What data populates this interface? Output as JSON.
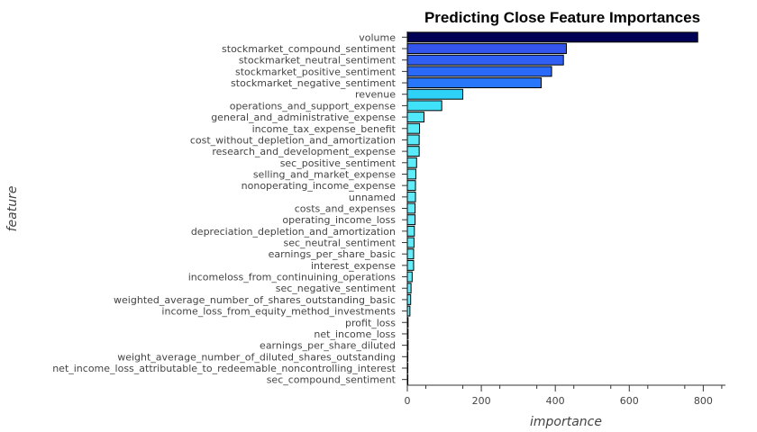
{
  "chart_data": {
    "type": "bar",
    "orientation": "horizontal",
    "title": "Predicting Close Feature Importances",
    "xlabel": "importance",
    "ylabel": "feature",
    "xlim": [
      0,
      860
    ],
    "xticks": [
      0,
      200,
      400,
      600,
      800
    ],
    "grid": false,
    "legend": "none",
    "bar_outline_color": "#000000",
    "categories": [
      "volume",
      "stockmarket_compound_sentiment",
      "stockmarket_neutral_sentiment",
      "stockmarket_positive_sentiment",
      "stockmarket_negative_sentiment",
      "revenue",
      "operations_and_support_expense",
      "general_and_administrative_expense",
      "income_tax_expense_benefit",
      "cost_without_depletion_and_amortization",
      "research_and_development_expense",
      "sec_positive_sentiment",
      "selling_and_market_expense",
      "nonoperating_income_expense",
      "unnamed",
      "costs_and_expenses",
      "operating_income_loss",
      "depreciation_depletion_and_amortization",
      "sec_neutral_sentiment",
      "earnings_per_share_basic",
      "interest_expense",
      "incomeloss_from_continuining_operations",
      "sec_negative_sentiment",
      "weighted_average_number_of_shares_outstanding_basic",
      "income_loss_from_equity_method_investments",
      "profit_loss",
      "net_income_loss",
      "earnings_per_share_diluted",
      "weight_average_number_of_diluted_shares_outstanding",
      "net_income_loss_attributable_to_redeemable_noncontrolling_interest",
      "sec_compound_sentiment"
    ],
    "values": [
      785,
      430,
      422,
      390,
      362,
      150,
      93,
      45,
      33,
      32,
      32,
      25,
      23,
      22,
      22,
      21,
      21,
      19,
      18,
      17,
      17,
      13,
      10,
      9,
      7,
      2,
      2,
      2,
      1,
      1,
      0
    ],
    "colors": [
      "#000055",
      "#3355ee",
      "#2f5ff5",
      "#2b6af8",
      "#2876f9",
      "#2ed2f6",
      "#40e2fa",
      "#52e8fb",
      "#5aebfb",
      "#5aebfb",
      "#5aebfb",
      "#5eecfb",
      "#5fecfb",
      "#60edfb",
      "#60edfb",
      "#61edfb",
      "#61edfb",
      "#62edfb",
      "#63edfb",
      "#64edfb",
      "#64edfb",
      "#66eefb",
      "#67eefb",
      "#68eefb",
      "#68eefb",
      "#6aeffb",
      "#6aeffb",
      "#6aeffb",
      "#6aeffb",
      "#6aeffb",
      "#6aeffb"
    ]
  }
}
